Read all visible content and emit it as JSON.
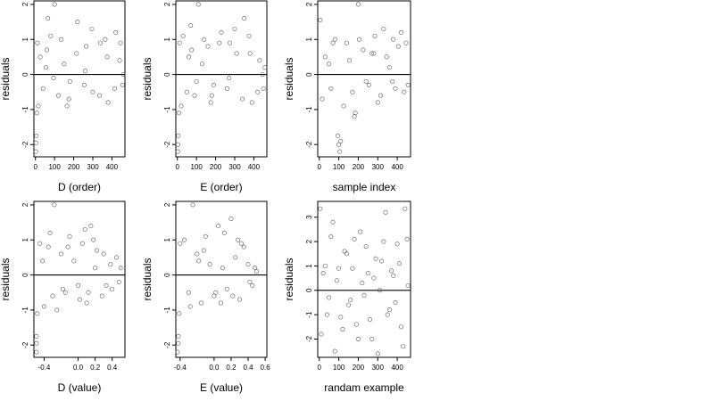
{
  "chart_data": [
    {
      "type": "scatter",
      "xlabel": "D (order)",
      "ylabel": "residuals",
      "xlim": [
        -8,
        468
      ],
      "ylim": [
        -2.35,
        2.1
      ],
      "xticks": [
        0,
        100,
        200,
        300,
        400
      ],
      "xtick_labels": [
        "0",
        "100",
        "200",
        "300",
        "400"
      ],
      "yticks": [
        -2,
        -1,
        0,
        1,
        2
      ],
      "ytick_labels": [
        "-2",
        "-1",
        "0",
        "1",
        "2"
      ],
      "hline": 0,
      "x": [
        2,
        3,
        5,
        7,
        10,
        25,
        40,
        60,
        80,
        100,
        120,
        150,
        180,
        220,
        260,
        300,
        340,
        380,
        420,
        440,
        455,
        15,
        55,
        95,
        135,
        175,
        215,
        255,
        295,
        335,
        375,
        415,
        445,
        65,
        165,
        265,
        365,
        460
      ],
      "y": [
        -2.2,
        -1.95,
        -1.75,
        -1.1,
        0.9,
        0.5,
        -0.4,
        0.7,
        1.1,
        2.0,
        -0.6,
        0.3,
        -0.2,
        1.5,
        0.1,
        -0.5,
        0.9,
        -0.8,
        1.2,
        0.4,
        -0.3,
        -0.9,
        0.2,
        -0.1,
        1.0,
        -0.7,
        0.6,
        -0.3,
        1.3,
        -0.6,
        0.5,
        -0.4,
        0.9,
        1.6,
        -0.9,
        0.8,
        1.0,
        0.0
      ]
    },
    {
      "type": "scatter",
      "xlabel": "E (order)",
      "ylabel": "residuals",
      "xlim": [
        -8,
        468
      ],
      "ylim": [
        -2.35,
        2.1
      ],
      "xticks": [
        0,
        100,
        200,
        300,
        400
      ],
      "xtick_labels": [
        "0",
        "100",
        "200",
        "300",
        "400"
      ],
      "yticks": [
        -2,
        -1,
        0,
        1,
        2
      ],
      "ytick_labels": [
        "-2",
        "-1",
        "0",
        "1",
        "2"
      ],
      "hline": 0,
      "x": [
        2,
        3,
        5,
        8,
        12,
        30,
        50,
        70,
        90,
        110,
        130,
        160,
        190,
        230,
        270,
        310,
        350,
        390,
        430,
        450,
        458,
        20,
        60,
        100,
        140,
        180,
        220,
        260,
        300,
        340,
        380,
        420,
        75,
        175,
        275,
        375,
        445
      ],
      "y": [
        -2.2,
        -2.0,
        -1.75,
        -1.1,
        0.9,
        1.1,
        -0.5,
        1.4,
        -0.6,
        2.0,
        0.3,
        0.8,
        -0.3,
        1.2,
        -0.1,
        0.6,
        1.6,
        -0.8,
        0.4,
        -0.4,
        0.2,
        -0.9,
        0.5,
        -0.2,
        1.0,
        -0.6,
        0.9,
        -0.4,
        1.3,
        -0.7,
        0.6,
        -0.5,
        0.7,
        -0.8,
        0.9,
        1.1,
        0.0
      ]
    },
    {
      "type": "scatter",
      "xlabel": "sample index",
      "ylabel": "residuals",
      "xlim": [
        -8,
        468
      ],
      "ylim": [
        -2.35,
        2.1
      ],
      "xticks": [
        0,
        100,
        200,
        300,
        400
      ],
      "xtick_labels": [
        "0",
        "100",
        "200",
        "300",
        "400"
      ],
      "yticks": [
        -2,
        -1,
        0,
        1,
        2
      ],
      "ytick_labels": [
        "-2",
        "-1",
        "0",
        "1",
        "2"
      ],
      "hline": 0,
      "x": [
        5,
        30,
        60,
        95,
        100,
        105,
        110,
        140,
        170,
        200,
        205,
        240,
        270,
        300,
        330,
        360,
        390,
        420,
        445,
        455,
        15,
        50,
        80,
        125,
        155,
        185,
        225,
        255,
        285,
        315,
        345,
        375,
        405,
        435,
        70,
        180,
        280,
        380
      ],
      "y": [
        1.55,
        0.5,
        -0.4,
        -1.75,
        -2.0,
        -2.2,
        -1.9,
        0.9,
        -0.5,
        2.0,
        1.0,
        -0.2,
        0.6,
        -0.8,
        1.3,
        0.2,
        -0.4,
        1.2,
        0.9,
        -0.3,
        -0.7,
        0.3,
        1.0,
        -0.9,
        0.4,
        -1.1,
        0.7,
        -0.3,
        1.1,
        -0.6,
        0.5,
        -0.2,
        0.8,
        -0.5,
        0.9,
        -1.2,
        0.6,
        1.0
      ]
    },
    {
      "type": "scatter",
      "xlabel": "D (value)",
      "ylabel": "residuals",
      "xlim": [
        -0.52,
        0.55
      ],
      "ylim": [
        -2.35,
        2.1
      ],
      "xticks": [
        -0.4,
        0.0,
        0.2,
        0.4
      ],
      "xtick_labels": [
        "-0.4",
        "0.0",
        "0.2",
        "0.4"
      ],
      "yticks": [
        -2,
        -1,
        0,
        1,
        2
      ],
      "ytick_labels": [
        "-2",
        "-1",
        "0",
        "1",
        "2"
      ],
      "hline": 0,
      "x": [
        -0.49,
        -0.49,
        -0.49,
        -0.48,
        -0.45,
        -0.42,
        -0.35,
        -0.3,
        -0.28,
        -0.2,
        -0.15,
        -0.1,
        -0.05,
        0.0,
        0.05,
        0.1,
        0.15,
        0.2,
        0.3,
        0.4,
        0.45,
        0.5,
        -0.4,
        -0.25,
        -0.12,
        0.02,
        0.08,
        0.12,
        0.22,
        0.33,
        -0.33,
        -0.18,
        0.18,
        0.28,
        0.38,
        0.48
      ],
      "y": [
        -2.2,
        -1.95,
        -1.75,
        -1.1,
        0.9,
        0.4,
        0.8,
        -0.6,
        2.0,
        0.6,
        -0.5,
        1.1,
        0.4,
        -0.3,
        0.9,
        -0.8,
        1.4,
        0.2,
        0.6,
        -0.4,
        0.5,
        0.2,
        -0.9,
        -1.0,
        0.8,
        -0.7,
        1.3,
        -0.5,
        0.7,
        -0.3,
        1.2,
        -0.4,
        1.0,
        -0.6,
        0.3,
        -0.2
      ]
    },
    {
      "type": "scatter",
      "xlabel": "E (value)",
      "ylabel": "residuals",
      "xlim": [
        -0.45,
        0.62
      ],
      "ylim": [
        -2.35,
        2.1
      ],
      "xticks": [
        -0.4,
        0.0,
        0.2,
        0.4,
        0.6
      ],
      "xtick_labels": [
        "-0.4",
        "0.0",
        "0.2",
        "0.4",
        "0.6"
      ],
      "yticks": [
        -2,
        -1,
        0,
        1,
        2
      ],
      "ytick_labels": [
        "-2",
        "-1",
        "0",
        "1",
        "2"
      ],
      "hline": 0,
      "x": [
        -0.43,
        -0.42,
        -0.42,
        -0.41,
        -0.4,
        -0.35,
        -0.3,
        -0.25,
        -0.2,
        -0.15,
        -0.1,
        -0.05,
        0.0,
        0.05,
        0.1,
        0.15,
        0.2,
        0.25,
        0.3,
        0.35,
        0.4,
        0.45,
        0.5,
        -0.28,
        -0.12,
        0.02,
        0.12,
        0.22,
        0.32,
        0.42,
        -0.18,
        0.08,
        0.28,
        0.48
      ],
      "y": [
        -2.2,
        -1.95,
        -1.75,
        -1.1,
        0.9,
        1.0,
        -0.5,
        2.0,
        0.6,
        -0.8,
        1.1,
        0.3,
        -0.6,
        1.4,
        0.2,
        -0.4,
        1.6,
        0.5,
        -0.7,
        0.8,
        0.3,
        -0.3,
        0.1,
        -0.9,
        0.7,
        -0.5,
        1.2,
        -0.6,
        0.9,
        -0.2,
        0.4,
        -0.8,
        1.0,
        0.2
      ]
    },
    {
      "type": "scatter",
      "xlabel": "randam example",
      "ylabel": "residuals",
      "xlim": [
        -8,
        468
      ],
      "ylim": [
        -2.75,
        3.65
      ],
      "xticks": [
        0,
        100,
        200,
        300,
        400
      ],
      "xtick_labels": [
        "0",
        "100",
        "200",
        "300",
        "400"
      ],
      "yticks": [
        -2,
        -1,
        0,
        1,
        2,
        3
      ],
      "ytick_labels": [
        "-2",
        "-1",
        "0",
        "1",
        "2",
        "3"
      ],
      "hline": 0,
      "x": [
        5,
        20,
        40,
        60,
        80,
        100,
        120,
        140,
        160,
        180,
        200,
        220,
        240,
        260,
        280,
        300,
        320,
        340,
        360,
        380,
        400,
        420,
        440,
        455,
        10,
        30,
        50,
        70,
        90,
        110,
        130,
        150,
        170,
        190,
        210,
        230,
        250,
        270,
        290,
        310,
        330,
        350,
        370,
        390,
        410,
        430,
        450
      ],
      "y": [
        3.35,
        0.7,
        -1.0,
        2.2,
        -2.5,
        0.9,
        -1.6,
        1.5,
        -0.4,
        2.1,
        -2.0,
        0.3,
        1.8,
        -1.2,
        0.5,
        -2.6,
        1.2,
        3.2,
        -0.8,
        0.6,
        1.9,
        -1.5,
        3.35,
        0.2,
        -1.8,
        1.0,
        -0.3,
        2.8,
        0.4,
        -1.1,
        1.6,
        -0.6,
        0.9,
        -1.4,
        2.4,
        -0.2,
        0.7,
        -2.0,
        1.3,
        0.0,
        2.0,
        -1.0,
        0.8,
        -0.5,
        1.1,
        -2.3,
        2.1
      ]
    }
  ]
}
